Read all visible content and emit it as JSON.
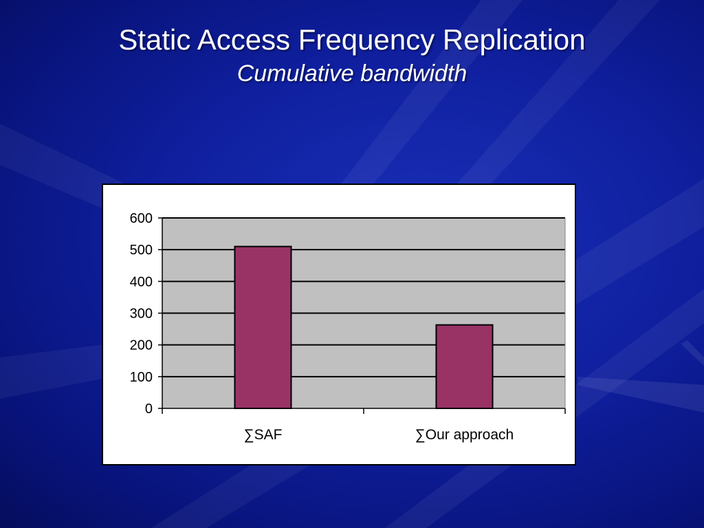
{
  "slide": {
    "title": "Static Access Frequency Replication",
    "subtitle": "Cumulative bandwidth"
  },
  "colors": {
    "background": "#0f1f9e",
    "plot_area": "#c0c0c0",
    "bar": "#993366",
    "frame": "#ffffff"
  },
  "chart_data": {
    "type": "bar",
    "categories": [
      "∑SAF",
      "∑Our approach"
    ],
    "values": [
      510,
      263
    ],
    "title": "",
    "xlabel": "",
    "ylabel": "",
    "ylim": [
      0,
      600
    ],
    "yticks": [
      0,
      100,
      200,
      300,
      400,
      500,
      600
    ],
    "grid": true,
    "legend": "none"
  }
}
